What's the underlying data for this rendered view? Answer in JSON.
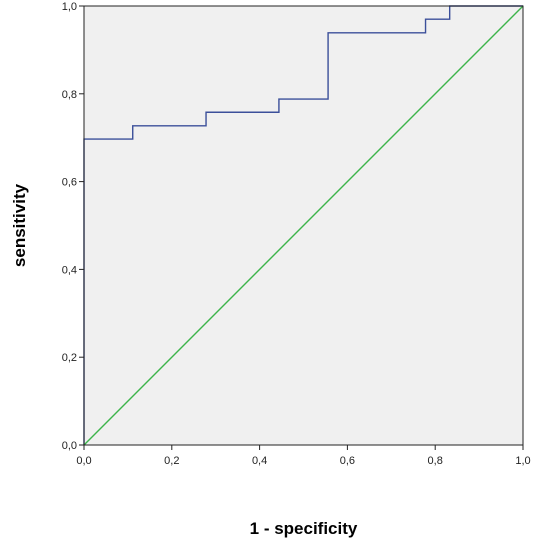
{
  "chart_data": {
    "type": "line",
    "title": "",
    "xlabel": "1 - specificity",
    "ylabel": "sensitivity",
    "xlim": [
      0,
      1
    ],
    "ylim": [
      0,
      1
    ],
    "x_ticks": [
      "0,0",
      "0,2",
      "0,4",
      "0,6",
      "0,8",
      "1,0"
    ],
    "y_ticks": [
      "0,0",
      "0,2",
      "0,4",
      "0,6",
      "0,8",
      "1,0"
    ],
    "grid": false,
    "legend": "none",
    "plot_background": "#f0f0f0",
    "series": [
      {
        "color": "#3b4f9a",
        "style": "step",
        "points": [
          [
            0.0,
            0.0
          ],
          [
            0.0,
            0.697
          ],
          [
            0.111,
            0.697
          ],
          [
            0.111,
            0.727
          ],
          [
            0.278,
            0.727
          ],
          [
            0.278,
            0.758
          ],
          [
            0.444,
            0.758
          ],
          [
            0.444,
            0.788
          ],
          [
            0.556,
            0.788
          ],
          [
            0.556,
            0.939
          ],
          [
            0.778,
            0.939
          ],
          [
            0.778,
            0.97
          ],
          [
            0.833,
            0.97
          ],
          [
            0.833,
            1.0
          ],
          [
            1.0,
            1.0
          ]
        ]
      },
      {
        "color": "#3cb44b",
        "style": "diagonal",
        "points": [
          [
            0.0,
            0.0
          ],
          [
            1.0,
            1.0
          ]
        ]
      }
    ]
  }
}
